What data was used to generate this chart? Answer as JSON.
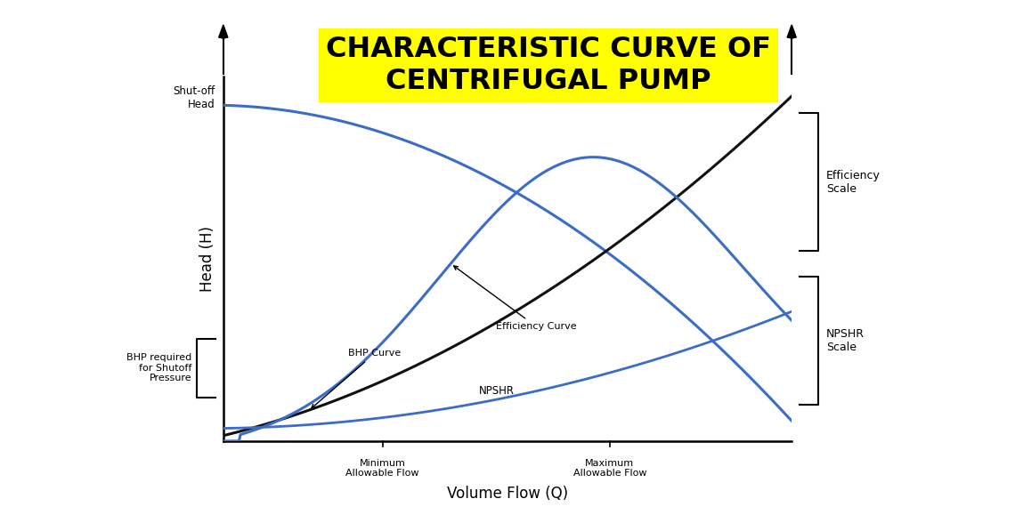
{
  "title_line1": "CHARACTERISTIC CURVE OF",
  "title_line2": "CENTRIFUGAL PUMP",
  "title_bg_color": "#FFFF00",
  "title_text_color": "#000000",
  "xlabel": "Volume Flow (Q)",
  "ylabel": "Head (H)",
  "bg_color": "#ffffff",
  "curve_color_blue": "#3A6CC8",
  "curve_color_black": "#111111",
  "x_min": 0.0,
  "x_max": 10.0,
  "y_min": 0.0,
  "y_max": 10.0,
  "min_flow_x": 2.8,
  "max_flow_x": 6.8,
  "shutoff_head_y": 9.2,
  "bhp_start_y": 0.15,
  "label_shutoff_head": "Shut-off\nHead",
  "label_bhp_required": "BHP required\nfor Shutoff\nPressure",
  "label_bhp_curve": "BHP Curve",
  "label_efficiency_curve": "Efficiency Curve",
  "label_npshr": "NPSHR",
  "label_efficiency_scale": "Efficiency\nScale",
  "label_npshr_scale": "NPSHR\nScale",
  "label_min_flow": "Minimum\nAllowable Flow",
  "label_max_flow": "Maximum\nAllowable Flow",
  "eff_bracket_top_y": 9.0,
  "eff_bracket_bot_y": 5.2,
  "npshr_bracket_top_y": 4.5,
  "npshr_bracket_bot_y": 1.0,
  "bhp_bracket_top_y": 2.8,
  "bhp_bracket_bot_y": 1.2
}
